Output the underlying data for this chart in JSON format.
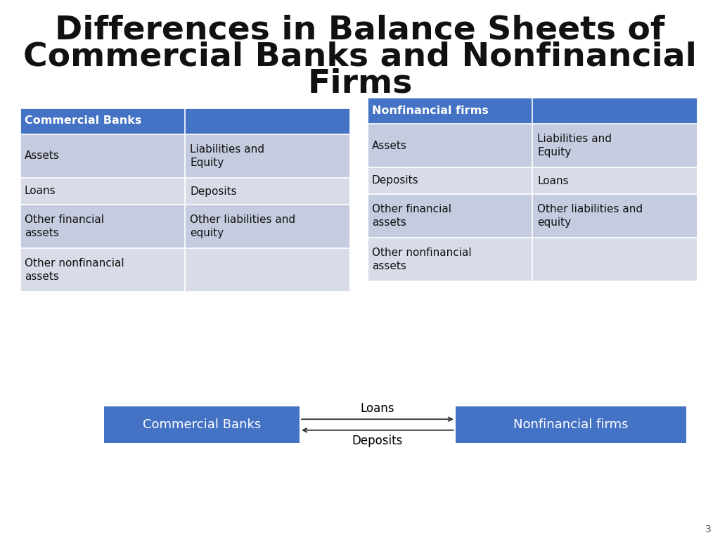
{
  "title_line1": "Differences in Balance Sheets of",
  "title_line2": "Commercial Banks and Nonfinancial",
  "title_line3": "Firms",
  "title_fontsize": 34,
  "background_color": "#ffffff",
  "header_color": "#4472C4",
  "row_color_light": "#C5CCE0",
  "row_color_lighter": "#D8DCE8",
  "header_text_color": "#ffffff",
  "cell_text_color": "#111111",
  "table1_title": "Commercial Banks",
  "table2_title": "Nonfinancial firms",
  "table1_data": [
    [
      "Assets",
      "Liabilities and\nEquity"
    ],
    [
      "Loans",
      "Deposits"
    ],
    [
      "Other financial\nassets",
      "Other liabilities and\nequity"
    ],
    [
      "Other nonfinancial\nassets",
      ""
    ]
  ],
  "table2_data": [
    [
      "Assets",
      "Liabilities and\nEquity"
    ],
    [
      "Deposits",
      "Loans"
    ],
    [
      "Other financial\nassets",
      "Other liabilities and\nequity"
    ],
    [
      "Other nonfinancial\nassets",
      ""
    ]
  ],
  "box1_label": "Commercial Banks",
  "box2_label": "Nonfinancial firms",
  "box_color": "#4472C4",
  "box_text_color": "#ffffff",
  "arrow_label_top": "Loans",
  "arrow_label_bottom": "Deposits",
  "page_number": "3"
}
